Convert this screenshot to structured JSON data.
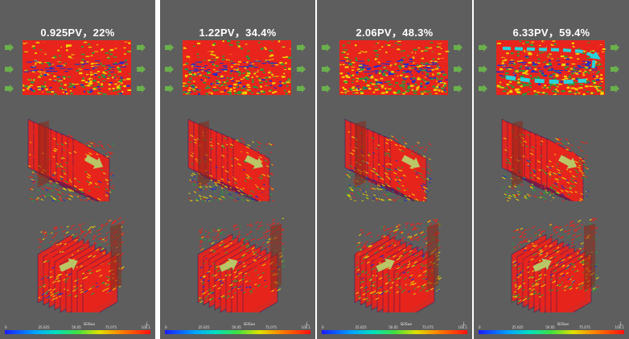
{
  "panels": [
    {
      "title": "0.925PV，22%",
      "arrow": "right",
      "streamlines": false
    },
    {
      "title": "1.22PV，34.4%",
      "arrow": "right",
      "streamlines": false
    },
    {
      "title": "2.06PV，48.3%",
      "arrow": "right",
      "streamlines": false
    },
    {
      "title": "6.33PV，59.4%",
      "arrow": "right",
      "streamlines": true
    }
  ],
  "colorbar": {
    "ticks": [
      "0",
      "25.025",
      "50.05",
      "75.075",
      "100.1"
    ],
    "label": "SEISwx"
  },
  "colors": {
    "background": "#5e5e5e",
    "flow_arrow": "#6ab04c",
    "streamline": "#26d4dc",
    "high": "#e8241c",
    "mid": "#f0d000",
    "low": "#2a9a3a",
    "lowest": "#1c2fd0"
  }
}
